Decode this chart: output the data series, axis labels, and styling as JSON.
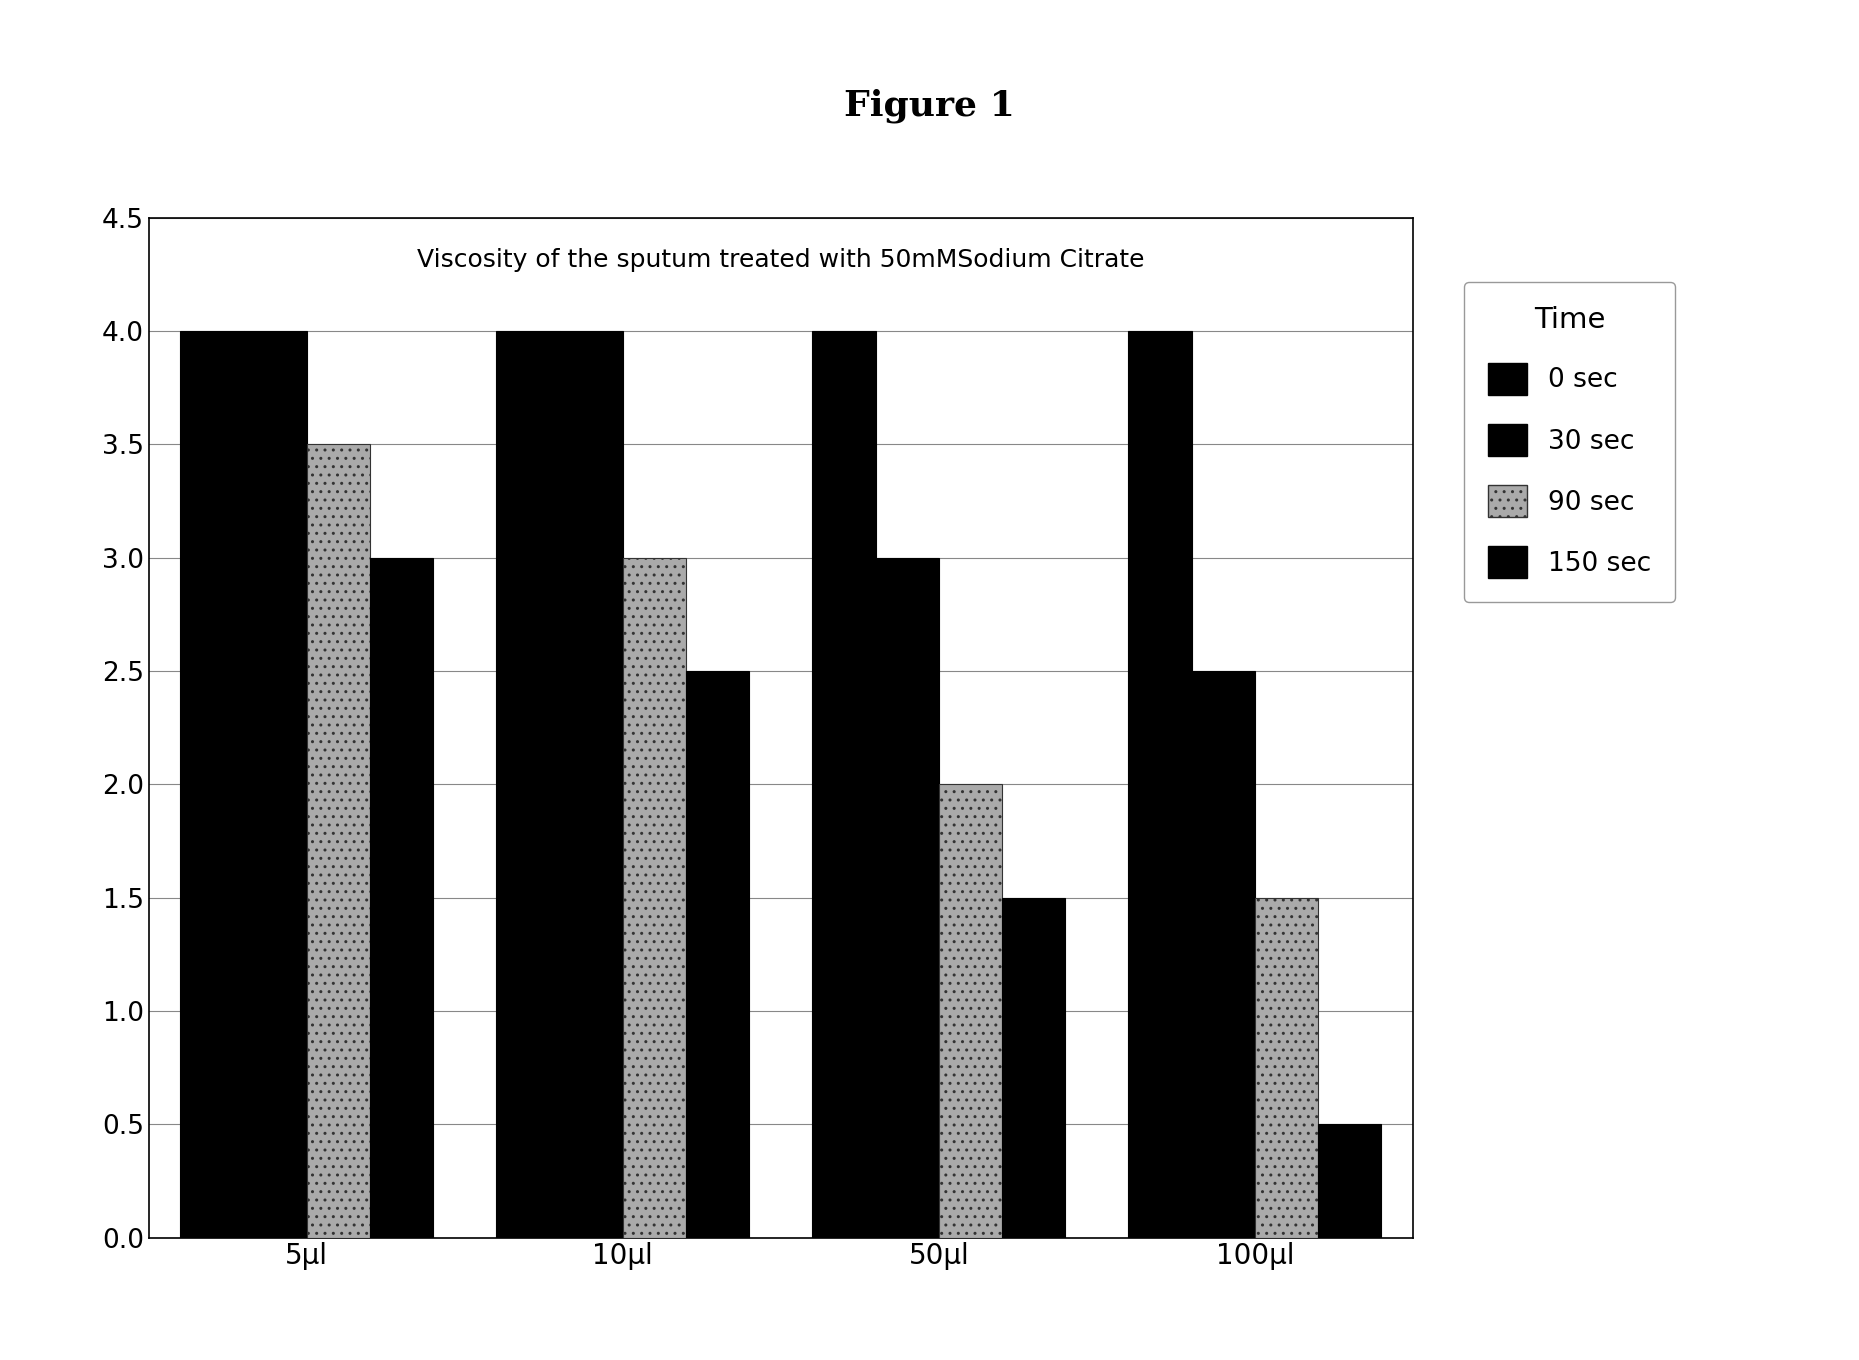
{
  "title": "Figure 1",
  "chart_title": "Viscosity of the sputum treated with 50mMSodium Citrate",
  "categories": [
    "5μl",
    "10μl",
    "50μl",
    "100μl"
  ],
  "series": [
    {
      "label": "0 sec",
      "values": [
        4.0,
        4.0,
        4.0,
        4.0
      ]
    },
    {
      "label": "30 sec",
      "values": [
        4.0,
        4.0,
        3.0,
        2.5
      ]
    },
    {
      "label": "90 sec",
      "values": [
        3.5,
        3.0,
        2.0,
        1.5
      ]
    },
    {
      "label": "150 sec",
      "values": [
        3.0,
        2.5,
        1.5,
        0.5
      ]
    }
  ],
  "ylim": [
    0,
    4.5
  ],
  "yticks": [
    0,
    0.5,
    1.0,
    1.5,
    2.0,
    2.5,
    3.0,
    3.5,
    4.0,
    4.5
  ],
  "legend_title": "Time",
  "bar_colors": [
    "#000000",
    "#000000",
    "#aaaaaa",
    "#000000"
  ],
  "bar_hatch": [
    null,
    null,
    "..",
    null
  ],
  "figure_bg": "#ffffff",
  "axes_bg": "#ffffff",
  "figsize": [
    18.59,
    13.6
  ],
  "dpi": 100
}
